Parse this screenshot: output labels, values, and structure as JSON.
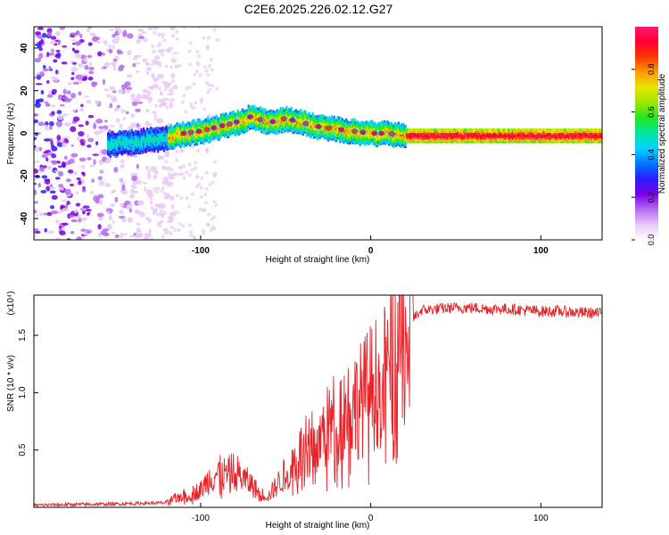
{
  "title": "C2E6.2025.226.02.12.G27",
  "colors": {
    "snr_line": "#e8232a",
    "axis": "#000000",
    "spectrogram_low": "#7a00e6",
    "spectrogram_high": "#ff1a1a"
  },
  "colorbar": {
    "label": "Normalized spectral amplitude",
    "ticks": [
      "0.0",
      "0.2",
      "0.4",
      "0.6",
      "0.8"
    ],
    "tick_values": [
      0.0,
      0.2,
      0.4,
      0.6,
      0.8
    ],
    "range": [
      0,
      1
    ],
    "palette": [
      "#ffffff",
      "#e9c8f5",
      "#b46cf0",
      "#7a00e6",
      "#2a1cff",
      "#0077ff",
      "#00d2ff",
      "#00e6a0",
      "#22e622",
      "#9be600",
      "#e6e600",
      "#ff9c00",
      "#ff3a00",
      "#ff0033",
      "#ff1a6e"
    ]
  },
  "chart_data": [
    {
      "type": "heatmap",
      "xlabel": "Height of straight line (km)",
      "ylabel": "Frequency (Hz)",
      "xlim": [
        -198,
        136
      ],
      "ylim": [
        -50,
        50
      ],
      "x_ticks": [
        -100,
        0,
        100
      ],
      "x_tick_labels": [
        "-100",
        "0",
        "100"
      ],
      "y_ticks": [
        -40,
        -20,
        0,
        20,
        40
      ],
      "y_tick_labels": [
        "-40",
        "-20",
        "0",
        "20",
        "40"
      ],
      "ridge": {
        "x": [
          -155,
          -140,
          -130,
          -120,
          -110,
          -100,
          -90,
          -80,
          -70,
          -60,
          -50,
          -40,
          -30,
          -20,
          -10,
          0,
          10,
          20,
          40,
          60,
          80,
          100,
          120,
          136
        ],
        "frequency": [
          -5,
          -4,
          -3,
          -2,
          0,
          1,
          3,
          5,
          8,
          5,
          7,
          5,
          3,
          2,
          1,
          0,
          0,
          -1,
          -1,
          -1,
          -1,
          -1,
          -1,
          -1
        ]
      }
    },
    {
      "type": "line",
      "xlabel": "Height of straight line (km)",
      "ylabel": "SNR (10 * v/v)",
      "y_multiplier_label": "(x10⁴)",
      "xlim": [
        -198,
        136
      ],
      "ylim": [
        0,
        1.85
      ],
      "x_ticks": [
        -100,
        0,
        100
      ],
      "x_tick_labels": [
        "-100",
        "0",
        "100"
      ],
      "y_ticks": [
        0.5,
        1.0,
        1.5
      ],
      "y_tick_labels": [
        "0.5",
        "1.0",
        "1.5"
      ],
      "series": [
        {
          "x": [
            -198,
            -150,
            -120,
            -115,
            -110,
            -100,
            -95,
            -90,
            -85,
            -80,
            -75,
            -70,
            -65,
            -60,
            -55,
            -50,
            -45,
            -40,
            -35,
            -30,
            -25,
            -20,
            -15,
            -10,
            -5,
            0,
            5,
            10,
            15,
            18,
            20,
            25,
            30,
            40,
            50,
            60,
            70,
            80,
            90,
            100,
            110,
            120,
            136
          ],
          "values": [
            0.02,
            0.03,
            0.04,
            0.08,
            0.1,
            0.15,
            0.25,
            0.3,
            0.28,
            0.32,
            0.25,
            0.2,
            0.12,
            0.1,
            0.2,
            0.3,
            0.4,
            0.5,
            0.55,
            0.6,
            0.7,
            0.8,
            0.85,
            0.9,
            0.95,
            1.05,
            1.1,
            1.2,
            1.35,
            1.55,
            1.45,
            1.65,
            1.72,
            1.73,
            1.74,
            1.74,
            1.73,
            1.73,
            1.72,
            1.71,
            1.71,
            1.7,
            1.69
          ]
        }
      ]
    }
  ]
}
